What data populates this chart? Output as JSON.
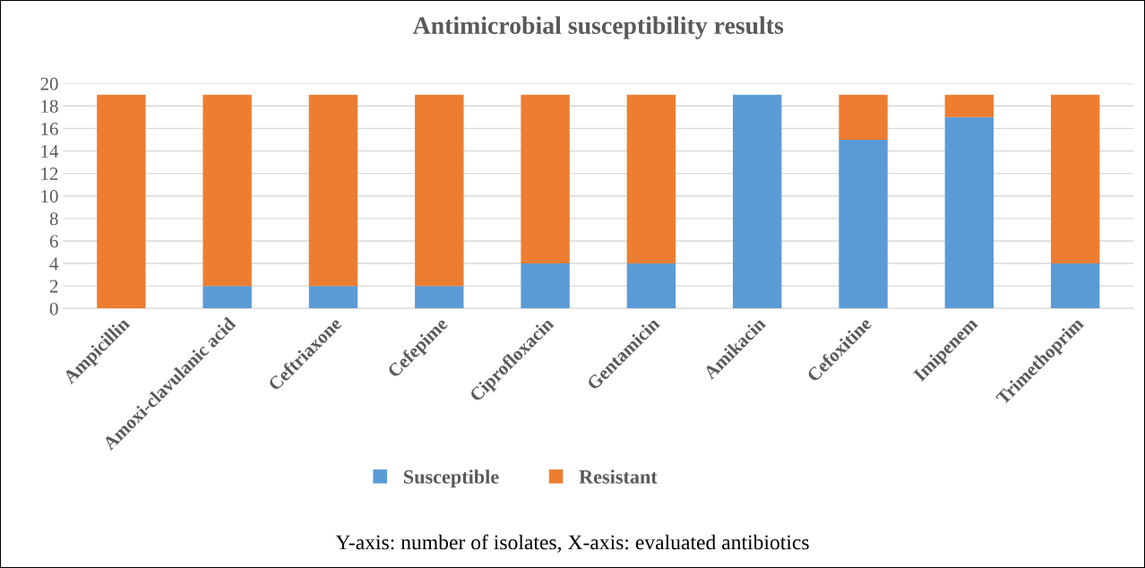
{
  "chart_data": {
    "type": "bar",
    "title": "Antimicrobial susceptibility results",
    "categories": [
      "Ampicillin",
      "Amoxi-clavulanic acid",
      "Ceftriaxone",
      "Cefepime",
      "Ciprofloxacin",
      "Gentamicin",
      "Amikacin",
      "Cefoxitine",
      "Imipenem",
      "Trimethoprim"
    ],
    "series": [
      {
        "name": "Susceptible",
        "color": "#5b9bd5",
        "values": [
          0,
          2,
          2,
          2,
          4,
          4,
          19,
          15,
          17,
          4
        ]
      },
      {
        "name": "Resistant",
        "color": "#ed7d31",
        "values": [
          19,
          17,
          17,
          17,
          15,
          15,
          0,
          4,
          2,
          15
        ]
      }
    ],
    "stacked": true,
    "ylim": [
      0,
      20
    ],
    "yticks": [
      0,
      2,
      4,
      6,
      8,
      10,
      12,
      14,
      16,
      18,
      20
    ],
    "grid": "y",
    "legend": "bottom",
    "annotations": [
      "Y-axis: number of isolates, X-axis: evaluated antibiotics"
    ]
  }
}
